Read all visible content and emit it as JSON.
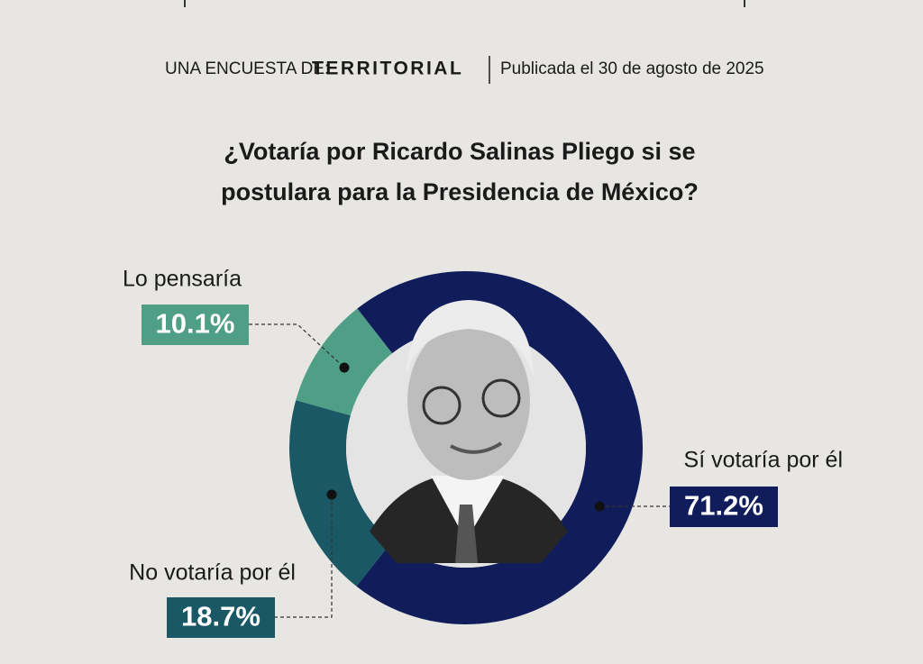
{
  "chart_data": {
    "type": "donut",
    "survey_prefix": "UNA ENCUESTA DE:",
    "source": "TERRITORIAL",
    "published": "Publicada el 30 de agosto de 2025",
    "title": [
      "¿Votaría por Ricardo Salinas Pliego si se",
      "postulara para la Presidencia de México?"
    ],
    "categories": [
      "Sí votaría por él",
      "No votaría por él",
      "Lo pensaría"
    ],
    "values": [
      71.2,
      18.7,
      10.1
    ],
    "value_labels": [
      "71.2%",
      "18.7%",
      "10.1%"
    ],
    "colors": [
      "#101d5a",
      "#1b5865",
      "#4f9e86"
    ]
  }
}
